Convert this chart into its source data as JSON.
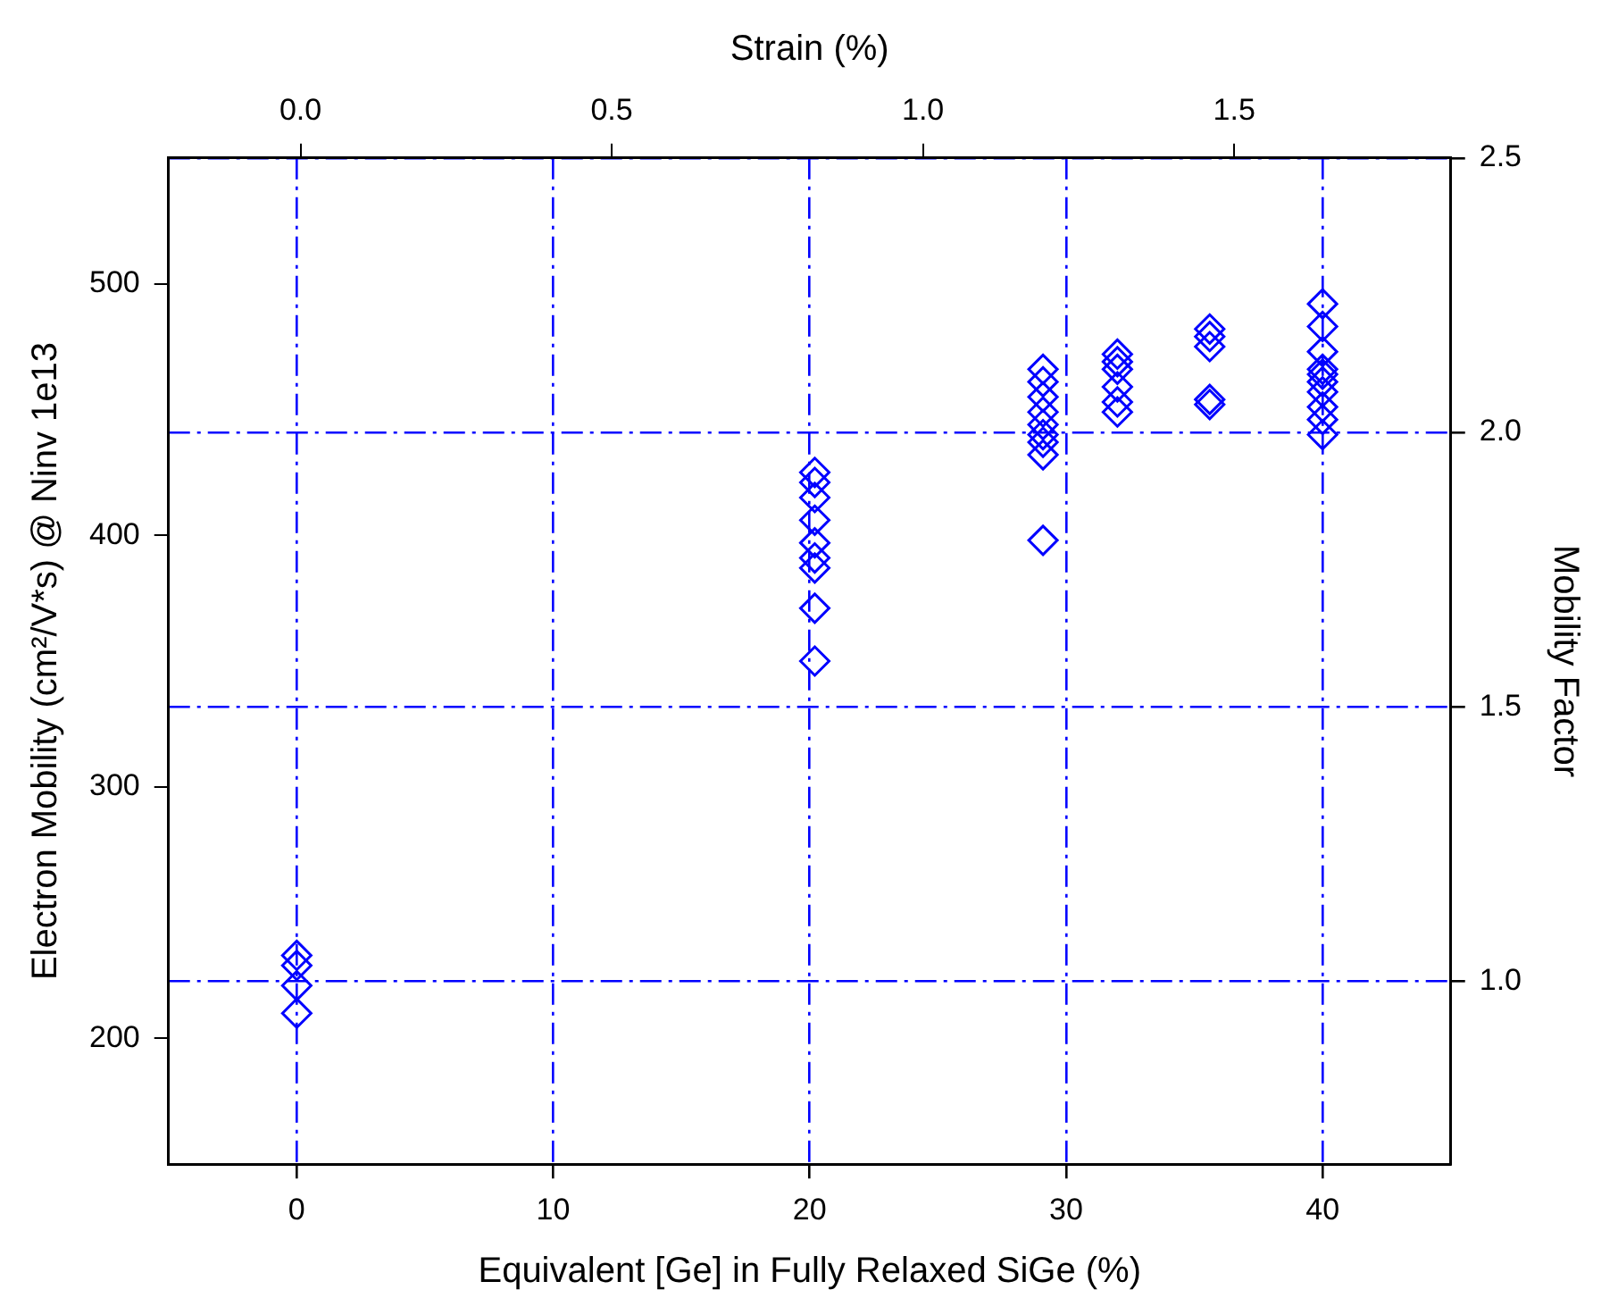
{
  "chart_data": {
    "type": "scatter",
    "xlabel": "Equivalent [Ge] in Fully Relaxed SiGe (%)",
    "ylabel": "Electron Mobility (cm²/V*s) @ Ninv 1e13",
    "x2label": "Strain (%)",
    "y2label": "Mobility Factor",
    "xlim": [
      -5,
      45
    ],
    "xticks": [
      0,
      10,
      20,
      30,
      40
    ],
    "ylim": [
      150,
      550
    ],
    "yticks": [
      200,
      300,
      400,
      500
    ],
    "x2lim": [
      -0.212,
      1.848
    ],
    "x2ticks": [
      {
        "value": 0,
        "label": "0.0"
      },
      {
        "value": 0.5,
        "label": "0.5"
      },
      {
        "value": 1,
        "label": "1.0"
      },
      {
        "value": 1.5,
        "label": "1.5"
      }
    ],
    "y2lim": [
      0.667,
      2.5
    ],
    "y2ticks": [
      {
        "value": 1,
        "label": "1.0"
      },
      {
        "value": 1.5,
        "label": "1.5"
      },
      {
        "value": 2,
        "label": "2.0"
      },
      {
        "value": 2.5,
        "label": "2.5"
      }
    ],
    "grid": true,
    "marker": "diamond",
    "series": [
      {
        "color": "#0000ff",
        "x": [
          0,
          0,
          0,
          0,
          20.2,
          20.2,
          20.2,
          20.2,
          20.2,
          20.2,
          20.2,
          20.2,
          20.2,
          29.1,
          29.1,
          29.1,
          29.1,
          29.1,
          29.1,
          29.1,
          29.1,
          29.1,
          32,
          32,
          32,
          32,
          32,
          32,
          35.6,
          35.6,
          35.6,
          35.6,
          35.6,
          40,
          40,
          40,
          40,
          40,
          40,
          40,
          40,
          40,
          40
        ],
        "values": [
          233,
          229,
          221,
          210,
          425,
          421,
          415,
          406,
          397,
          391,
          387,
          371,
          350,
          466,
          461,
          455,
          449,
          444,
          440,
          437,
          432,
          398,
          472,
          469,
          466,
          459,
          453,
          449,
          482,
          479,
          475,
          454,
          452,
          492,
          483,
          473,
          466,
          464,
          461,
          457,
          451,
          446,
          440
        ]
      }
    ]
  }
}
